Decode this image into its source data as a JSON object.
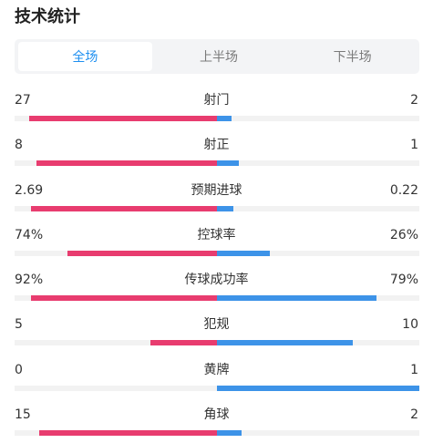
{
  "title": "技术统计",
  "tabs": [
    {
      "label": "全场",
      "active": true
    },
    {
      "label": "上半场",
      "active": false
    },
    {
      "label": "下半场",
      "active": false
    }
  ],
  "colors": {
    "home": "#e83c6f",
    "away": "#3d93e8",
    "active_tab": "#1e8ff0"
  },
  "stats": [
    {
      "name": "射门",
      "left": "27",
      "right": "2",
      "left_share": 0.93,
      "right_share": 0.07
    },
    {
      "name": "射正",
      "left": "8",
      "right": "1",
      "left_share": 0.89,
      "right_share": 0.11
    },
    {
      "name": "预期进球",
      "left": "2.69",
      "right": "0.22",
      "left_share": 0.92,
      "right_share": 0.08
    },
    {
      "name": "控球率",
      "left": "74%",
      "right": "26%",
      "left_share": 0.74,
      "right_share": 0.26
    },
    {
      "name": "传球成功率",
      "left": "92%",
      "right": "79%",
      "left_share": 0.92,
      "right_share": 0.79
    },
    {
      "name": "犯规",
      "left": "5",
      "right": "10",
      "left_share": 0.33,
      "right_share": 0.67
    },
    {
      "name": "黄牌",
      "left": "0",
      "right": "1",
      "left_share": 0.0,
      "right_share": 1.0
    },
    {
      "name": "角球",
      "left": "15",
      "right": "2",
      "left_share": 0.88,
      "right_share": 0.12
    }
  ]
}
